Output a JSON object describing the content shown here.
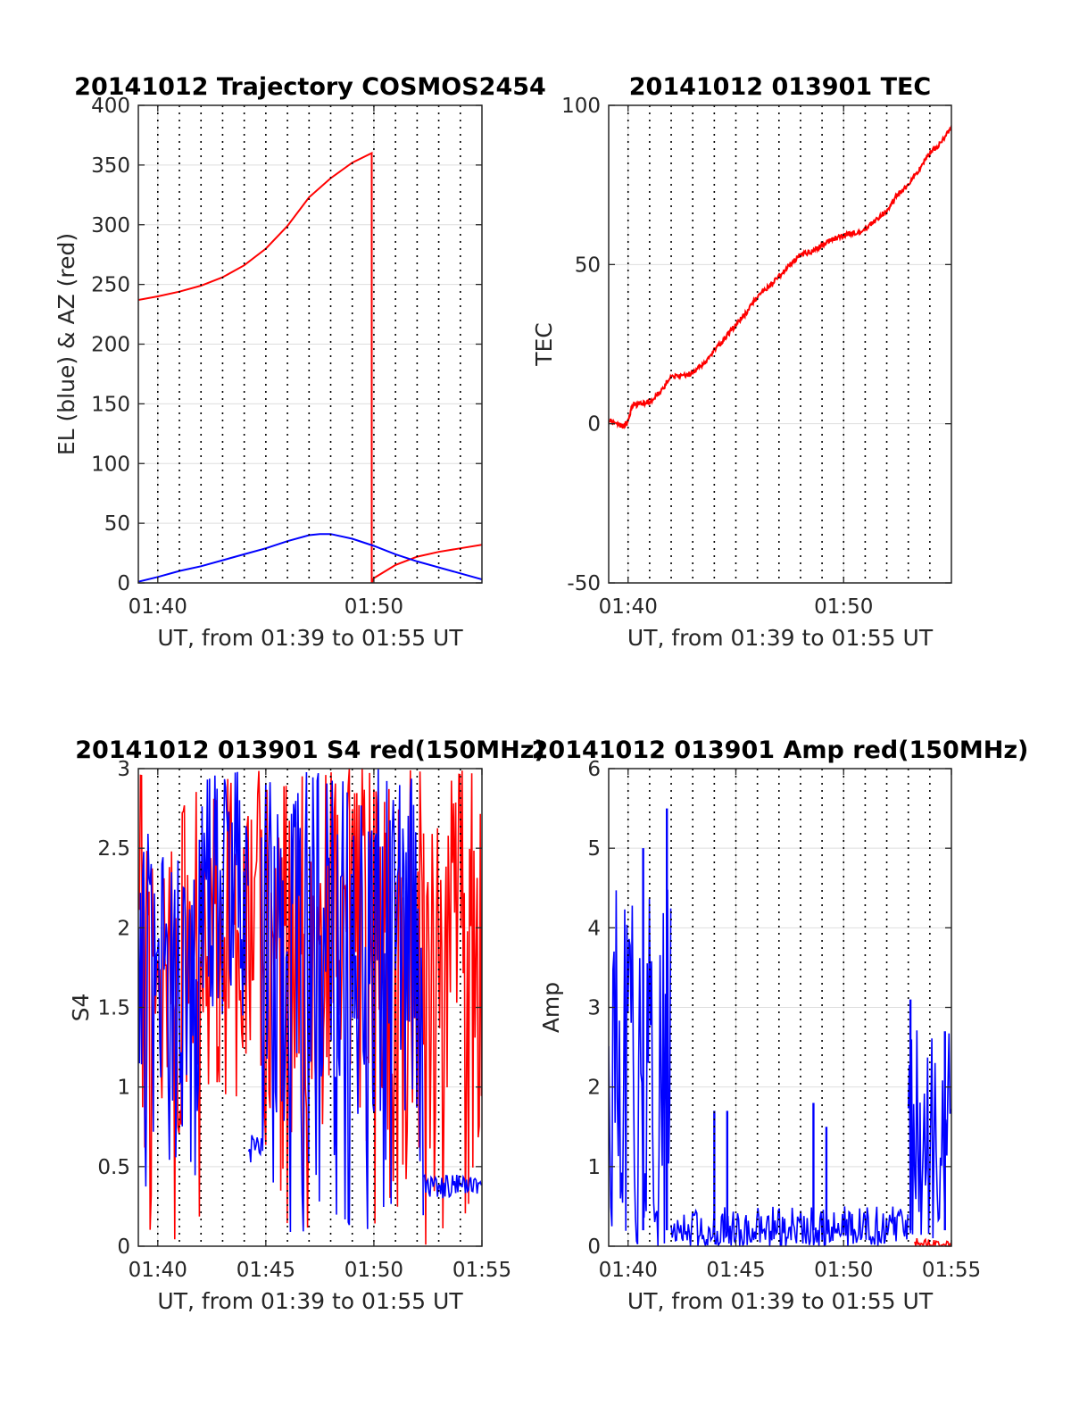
{
  "figure": {
    "layout": "2x2 subplot grid",
    "colors": {
      "red": "#ff0000",
      "blue": "#0000ff",
      "axis": "#262626",
      "grid": "#dedede",
      "vline": "#000000"
    }
  },
  "chart_data": [
    {
      "id": "trajectory",
      "type": "line",
      "title": "20141012 Trajectory COSMOS2454",
      "xlabel": "UT, from 01:39 to 01:55 UT",
      "ylabel": "EL (blue) & AZ (red)",
      "xlim": [
        39.1,
        55.0
      ],
      "ylim": [
        0,
        400
      ],
      "xticks": [
        40,
        50
      ],
      "xtick_labels": [
        "01:40",
        "01:50"
      ],
      "yticks": [
        0,
        50,
        100,
        150,
        200,
        250,
        300,
        350,
        400
      ],
      "ytick_labels": [
        "0",
        "50",
        "100",
        "150",
        "200",
        "250",
        "300",
        "350",
        "400"
      ],
      "vertical_dotted_lines": [
        40,
        41,
        42,
        43,
        44,
        45,
        46,
        47,
        48,
        49,
        50,
        51,
        52,
        53,
        54
      ],
      "series": [
        {
          "name": "AZ (red)",
          "color": "#ff0000",
          "x": [
            39.1,
            40,
            41,
            42,
            43,
            44,
            45,
            46,
            47,
            48,
            49,
            49.9,
            49.9,
            50,
            51,
            52,
            53,
            54,
            55
          ],
          "y": [
            237,
            240,
            244,
            249,
            256,
            266,
            280,
            299,
            323,
            339,
            352,
            360,
            0,
            4,
            15,
            22,
            26,
            29,
            32
          ]
        },
        {
          "name": "EL (blue)",
          "color": "#0000ff",
          "x": [
            39.1,
            40,
            41,
            42,
            43,
            44,
            45,
            46,
            47,
            47.5,
            48,
            49,
            50,
            51,
            52,
            53,
            54,
            55
          ],
          "y": [
            1,
            5,
            10,
            14,
            19,
            24,
            29,
            35,
            40,
            41,
            41,
            37,
            31,
            24,
            18,
            13,
            8,
            3
          ]
        }
      ]
    },
    {
      "id": "tec",
      "type": "line",
      "title": "20141012 013901 TEC",
      "xlabel": "UT, from 01:39 to 01:55 UT",
      "ylabel": "TEC",
      "xlim": [
        39.1,
        55.0
      ],
      "ylim": [
        -50,
        100
      ],
      "xticks": [
        40,
        50
      ],
      "xtick_labels": [
        "01:40",
        "01:50"
      ],
      "yticks": [
        -50,
        0,
        50,
        100
      ],
      "ytick_labels": [
        "-50",
        "0",
        "50",
        "100"
      ],
      "vertical_dotted_lines": [
        40,
        41,
        42,
        43,
        44,
        45,
        46,
        47,
        48,
        49,
        50,
        51,
        52,
        53,
        54
      ],
      "series": [
        {
          "name": "TEC",
          "color": "#ff0000",
          "x": [
            39.1,
            39.5,
            39.8,
            40.0,
            40.2,
            40.5,
            41.0,
            41.5,
            42.0,
            42.5,
            43.0,
            43.5,
            44.0,
            44.5,
            45.0,
            45.5,
            46.0,
            46.5,
            47.0,
            47.5,
            48.0,
            48.5,
            49.0,
            49.5,
            50.0,
            50.5,
            51.0,
            51.5,
            52.0,
            52.5,
            53.0,
            53.5,
            54.0,
            54.5,
            55.0
          ],
          "y": [
            1,
            0,
            -1,
            1,
            6,
            6,
            7,
            10,
            15,
            15,
            16,
            19,
            23,
            27,
            31,
            35,
            40,
            43,
            46,
            50,
            53,
            54,
            56,
            58,
            59,
            60,
            61,
            64,
            67,
            72,
            75,
            80,
            85,
            88,
            93
          ]
        }
      ]
    },
    {
      "id": "s4",
      "type": "line",
      "title": "20141012 013901 S4 red(150MHz)",
      "xlabel": "UT, from 01:39 to 01:55 UT",
      "ylabel": "S4",
      "xlim": [
        39.1,
        55.0
      ],
      "ylim": [
        0,
        3
      ],
      "xticks": [
        40,
        45,
        50,
        55
      ],
      "xtick_labels": [
        "01:40",
        "01:45",
        "01:50",
        "01:55"
      ],
      "yticks": [
        0,
        0.5,
        1,
        1.5,
        2,
        2.5,
        3
      ],
      "ytick_labels": [
        "0",
        "0.5",
        "1",
        "1.5",
        "2",
        "2.5",
        "3"
      ],
      "vertical_dotted_lines": [
        40,
        41,
        42,
        43,
        44,
        45,
        46,
        47,
        48,
        49,
        50,
        51,
        52,
        53,
        54
      ],
      "series": [
        {
          "name": "red",
          "color": "#ff0000",
          "envelope": [
            {
              "x0": 39.1,
              "x1": 42.0,
              "low": 0.0,
              "high": 3.0
            },
            {
              "x0": 42.0,
              "x1": 44.8,
              "low": 0.8,
              "high": 3.0
            },
            {
              "x0": 44.8,
              "x1": 49.7,
              "low": 0.0,
              "high": 3.0
            },
            {
              "x0": 49.7,
              "x1": 50.5,
              "low": 0.0,
              "high": 3.0
            },
            {
              "x0": 50.5,
              "x1": 52.3,
              "low": 0.0,
              "high": 3.0
            },
            {
              "x0": 52.3,
              "x1": 55.0,
              "low": 0.0,
              "high": 3.0
            }
          ]
        },
        {
          "name": "blue",
          "color": "#0000ff",
          "envelope": [
            {
              "x0": 39.1,
              "x1": 42.0,
              "low": 0.3,
              "high": 2.6
            },
            {
              "x0": 42.0,
              "x1": 44.2,
              "low": 1.3,
              "high": 3.0
            },
            {
              "x0": 44.2,
              "x1": 44.8,
              "low": 0.5,
              "high": 0.7
            },
            {
              "x0": 44.8,
              "x1": 52.3,
              "low": 0.0,
              "high": 3.0
            },
            {
              "x0": 52.3,
              "x1": 55.0,
              "low": 0.3,
              "high": 0.45
            }
          ]
        }
      ]
    },
    {
      "id": "amp",
      "type": "line",
      "title": "20141012 013901 Amp red(150MHz)",
      "xlabel": "UT, from 01:39 to 01:55 UT",
      "ylabel": "Amp",
      "xlim": [
        39.1,
        55.0
      ],
      "ylim": [
        0,
        6
      ],
      "xticks": [
        40,
        45,
        50,
        55
      ],
      "xtick_labels": [
        "01:40",
        "01:45",
        "01:50",
        "01:55"
      ],
      "yticks": [
        0,
        1,
        2,
        3,
        4,
        5,
        6
      ],
      "ytick_labels": [
        "0",
        "1",
        "2",
        "3",
        "4",
        "5",
        "6"
      ],
      "vertical_dotted_lines": [
        40,
        41,
        42,
        43,
        44,
        45,
        46,
        47,
        48,
        49,
        50,
        51,
        52,
        53,
        54
      ],
      "series": [
        {
          "name": "blue",
          "color": "#0000ff",
          "envelope": [
            {
              "x0": 39.1,
              "x1": 42.0,
              "low": 0.0,
              "high": 4.5
            },
            {
              "x0": 42.0,
              "x1": 53.0,
              "low": 0.0,
              "high": 0.5
            },
            {
              "x0": 53.0,
              "x1": 55.0,
              "low": 0.1,
              "high": 2.9
            }
          ],
          "spikes": [
            {
              "x": 40.7,
              "y": 5.0
            },
            {
              "x": 41.8,
              "y": 5.5
            },
            {
              "x": 44.0,
              "y": 1.7
            },
            {
              "x": 44.6,
              "y": 1.7
            },
            {
              "x": 48.6,
              "y": 1.8
            },
            {
              "x": 49.2,
              "y": 1.5
            },
            {
              "x": 53.1,
              "y": 3.1
            },
            {
              "x": 54.7,
              "y": 2.7
            }
          ]
        },
        {
          "name": "red",
          "color": "#ff0000",
          "envelope": [
            {
              "x0": 53.3,
              "x1": 55.0,
              "low": 0.0,
              "high": 0.1
            }
          ]
        }
      ]
    }
  ]
}
